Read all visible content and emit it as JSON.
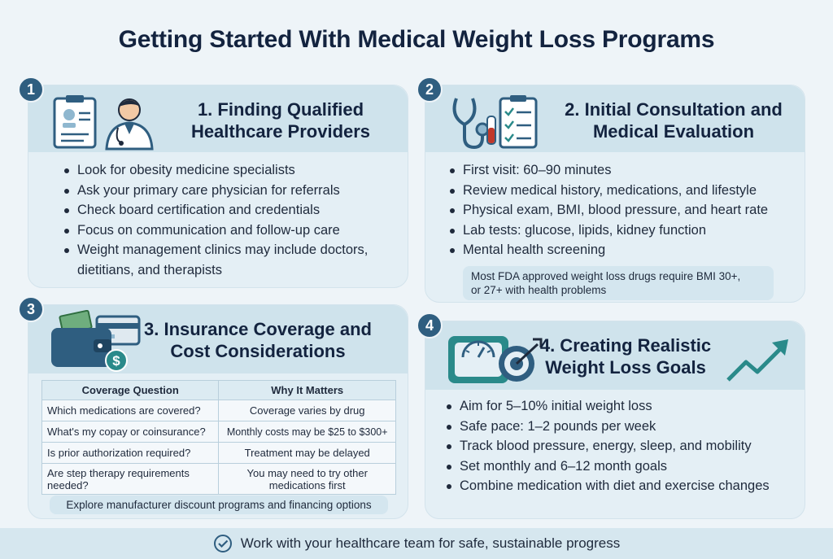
{
  "title": "Getting Started With Medical Weight Loss Programs",
  "cards": [
    {
      "number": "1",
      "title_line1": "1. Finding Qualified",
      "title_line2": "Healthcare Providers",
      "bullets": [
        "Look for obesity medicine specialists",
        "Ask your primary care physician for referrals",
        "Check board certification and credentials",
        "Focus on communication and follow-up care",
        "Weight management clinics may include doctors,",
        "dietitians, and therapists"
      ]
    },
    {
      "number": "2",
      "title_line1": "2. Initial Consultation and",
      "title_line2": "Medical Evaluation",
      "bullets": [
        "First visit: 60–90 minutes",
        "Review medical history, medications, and lifestyle",
        "Physical exam, BMI, blood pressure, and heart rate",
        "Lab tests: glucose, lipids, kidney function",
        "Mental health screening"
      ],
      "note_line1": "Most FDA approved weight loss drugs require BMI 30+,",
      "note_line2": "or 27+ with health problems"
    },
    {
      "number": "3",
      "title_line1": "3. Insurance Coverage and",
      "title_line2": "Cost Considerations",
      "table": {
        "headers": [
          "Coverage Question",
          "Why It Matters"
        ],
        "rows": [
          [
            "Which medications are covered?",
            "Coverage varies by drug"
          ],
          [
            "What's my copay or coinsurance?",
            "Monthly costs may be $25 to $300+"
          ],
          [
            "Is prior authorization required?",
            "Treatment may be delayed"
          ],
          [
            "Are step therapy requirements needed?",
            "You may need to try other medications first"
          ]
        ]
      },
      "note": "Explore manufacturer discount programs and financing options"
    },
    {
      "number": "4",
      "title_line1": "4. Creating Realistic",
      "title_line2": "Weight Loss Goals",
      "bullets": [
        "Aim for 5–10% initial weight loss",
        "Safe pace: 1–2 pounds per week",
        "Track blood pressure, energy, sleep, and mobility",
        "Set monthly and 6–12 month goals",
        "Combine medication with diet and exercise changes"
      ]
    }
  ],
  "footer": "Work with your healthcare team for safe, sustainable progress",
  "colors": {
    "accent": "#2f5e80",
    "card": "#e4eff5",
    "header": "#cfe3ec",
    "teal": "#2a8a8a"
  },
  "icons": [
    "doctor-clipboard-icon",
    "stethoscope-checklist-icon",
    "wallet-money-icon",
    "scale-target-icon",
    "trend-up-arrow-icon",
    "check-circle-icon"
  ]
}
